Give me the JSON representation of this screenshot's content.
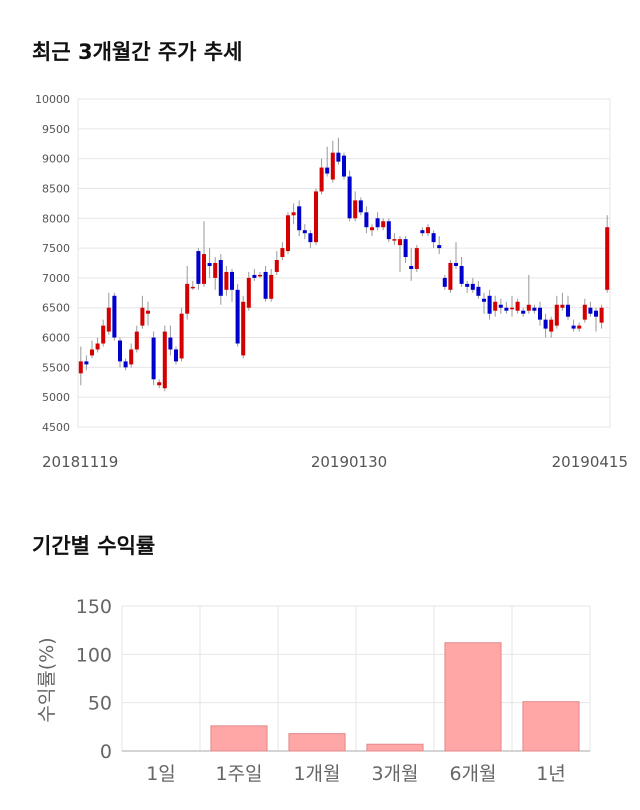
{
  "sections": {
    "price_title": "최근 3개월간 주가 추세",
    "return_title": "기간별 수익률"
  },
  "chart_data": [
    {
      "type": "candlestick",
      "title": "최근 3개월간 주가 추세",
      "ylim": [
        4500,
        10000
      ],
      "yticks": [
        10000,
        9500,
        9000,
        8500,
        8000,
        7500,
        7000,
        6500,
        6000,
        5500,
        5000,
        4500
      ],
      "x_labels": [
        "20181119",
        "20190130",
        "20190415"
      ],
      "grid": true,
      "colors": {
        "up": "#d40000",
        "down": "#0000cc",
        "wick": "#999999"
      },
      "candles": [
        [
          5400,
          5600,
          5850,
          5200
        ],
        [
          5600,
          5550,
          5700,
          5450
        ],
        [
          5700,
          5800,
          5950,
          5650
        ],
        [
          5800,
          5900,
          6000,
          5750
        ],
        [
          5900,
          6200,
          6300,
          5850
        ],
        [
          6100,
          6500,
          6750,
          6050
        ],
        [
          6700,
          6000,
          6750,
          5950
        ],
        [
          5950,
          5600,
          6000,
          5500
        ],
        [
          5600,
          5500,
          5650,
          5450
        ],
        [
          5550,
          5800,
          5900,
          5500
        ],
        [
          5800,
          6100,
          6200,
          5750
        ],
        [
          6200,
          6500,
          6700,
          6150
        ],
        [
          6400,
          6450,
          6600,
          6200
        ],
        [
          6000,
          5300,
          6100,
          5200
        ],
        [
          5200,
          5250,
          5300,
          5150
        ],
        [
          5150,
          6100,
          6200,
          5100
        ],
        [
          6000,
          5800,
          6200,
          5700
        ],
        [
          5800,
          5600,
          5850,
          5550
        ],
        [
          5650,
          6400,
          6500,
          5600
        ],
        [
          6400,
          6900,
          7200,
          6300
        ],
        [
          6850,
          6850,
          6950,
          6800
        ],
        [
          7450,
          6900,
          7500,
          6800
        ],
        [
          6900,
          7400,
          7950,
          6850
        ],
        [
          7250,
          7200,
          7500,
          7000
        ],
        [
          7000,
          7250,
          7350,
          6800
        ],
        [
          7300,
          6700,
          7400,
          6550
        ],
        [
          6800,
          7100,
          7200,
          6700
        ],
        [
          7100,
          6800,
          7150,
          6600
        ],
        [
          6800,
          5900,
          6900,
          5850
        ],
        [
          5700,
          6600,
          6700,
          5650
        ],
        [
          6500,
          7000,
          7100,
          6450
        ],
        [
          7050,
          7000,
          7150,
          6950
        ],
        [
          7050,
          7050,
          7100,
          7000
        ],
        [
          7100,
          6650,
          7200,
          6600
        ],
        [
          6650,
          7050,
          7150,
          6600
        ],
        [
          7100,
          7300,
          7450,
          7050
        ],
        [
          7350,
          7500,
          7600,
          7300
        ],
        [
          7450,
          8050,
          8100,
          7400
        ],
        [
          8050,
          8100,
          8250,
          7900
        ],
        [
          8200,
          7800,
          8300,
          7700
        ],
        [
          7800,
          7750,
          7900,
          7650
        ],
        [
          7750,
          7600,
          7800,
          7500
        ],
        [
          7600,
          8450,
          8500,
          7550
        ],
        [
          8450,
          8850,
          9000,
          8400
        ],
        [
          8850,
          8750,
          9200,
          8700
        ],
        [
          8650,
          9100,
          9300,
          8600
        ],
        [
          9100,
          8950,
          9350,
          8900
        ],
        [
          9050,
          8700,
          9100,
          8650
        ],
        [
          8700,
          8000,
          8800,
          7950
        ],
        [
          8000,
          8300,
          8450,
          7950
        ],
        [
          8300,
          8100,
          8350,
          8050
        ],
        [
          8100,
          7850,
          8200,
          7750
        ],
        [
          7800,
          7850,
          7900,
          7700
        ],
        [
          8000,
          7850,
          8100,
          7800
        ],
        [
          7850,
          7950,
          8000,
          7800
        ],
        [
          7950,
          7650,
          8000,
          7600
        ],
        [
          7650,
          7650,
          7750,
          7550
        ],
        [
          7550,
          7650,
          7700,
          7100
        ],
        [
          7650,
          7350,
          7700,
          7250
        ],
        [
          7200,
          7150,
          7500,
          6950
        ],
        [
          7150,
          7500,
          7550,
          7100
        ],
        [
          7800,
          7750,
          7850,
          7700
        ],
        [
          7750,
          7850,
          7900,
          7700
        ],
        [
          7750,
          7600,
          7800,
          7500
        ],
        [
          7550,
          7500,
          7700,
          7400
        ],
        [
          7000,
          6850,
          7050,
          6800
        ],
        [
          6800,
          7250,
          7300,
          6750
        ],
        [
          7250,
          7200,
          7600,
          7150
        ],
        [
          7200,
          6900,
          7350,
          6850
        ],
        [
          6900,
          6850,
          6950,
          6750
        ],
        [
          6900,
          6800,
          7000,
          6750
        ],
        [
          6850,
          6700,
          6950,
          6650
        ],
        [
          6650,
          6600,
          6750,
          6400
        ],
        [
          6700,
          6400,
          6800,
          6300
        ],
        [
          6450,
          6600,
          6700,
          6350
        ],
        [
          6550,
          6500,
          6650,
          6400
        ],
        [
          6500,
          6450,
          6600,
          6400
        ],
        [
          6500,
          6500,
          6700,
          6350
        ],
        [
          6450,
          6600,
          6650,
          6400
        ],
        [
          6450,
          6400,
          6500,
          6350
        ],
        [
          6450,
          6550,
          7050,
          6400
        ],
        [
          6500,
          6450,
          6550,
          6400
        ],
        [
          6500,
          6300,
          6600,
          6200
        ],
        [
          6300,
          6150,
          6400,
          6000
        ],
        [
          6100,
          6300,
          6350,
          6000
        ],
        [
          6200,
          6550,
          6700,
          6150
        ],
        [
          6500,
          6550,
          6750,
          6450
        ],
        [
          6550,
          6350,
          6700,
          6300
        ],
        [
          6200,
          6150,
          6300,
          6100
        ],
        [
          6150,
          6200,
          6250,
          6100
        ],
        [
          6300,
          6550,
          6650,
          6250
        ],
        [
          6500,
          6400,
          6600,
          6350
        ],
        [
          6450,
          6350,
          6500,
          6100
        ],
        [
          6250,
          6500,
          6550,
          6150
        ],
        [
          6800,
          7850,
          8050,
          6750
        ]
      ]
    },
    {
      "type": "bar",
      "title": "기간별 수익률",
      "ylabel": "수익률(%)",
      "categories": [
        "1일",
        "1주일",
        "1개월",
        "3개월",
        "6개월",
        "1년"
      ],
      "values": [
        0,
        26,
        18,
        7,
        112,
        51
      ],
      "ylim": [
        0,
        150
      ],
      "yticks": [
        0,
        50,
        100,
        150
      ],
      "grid": true,
      "colors": {
        "bar_fill": "#ffa6a6",
        "bar_stroke": "#e28a8a"
      }
    }
  ]
}
